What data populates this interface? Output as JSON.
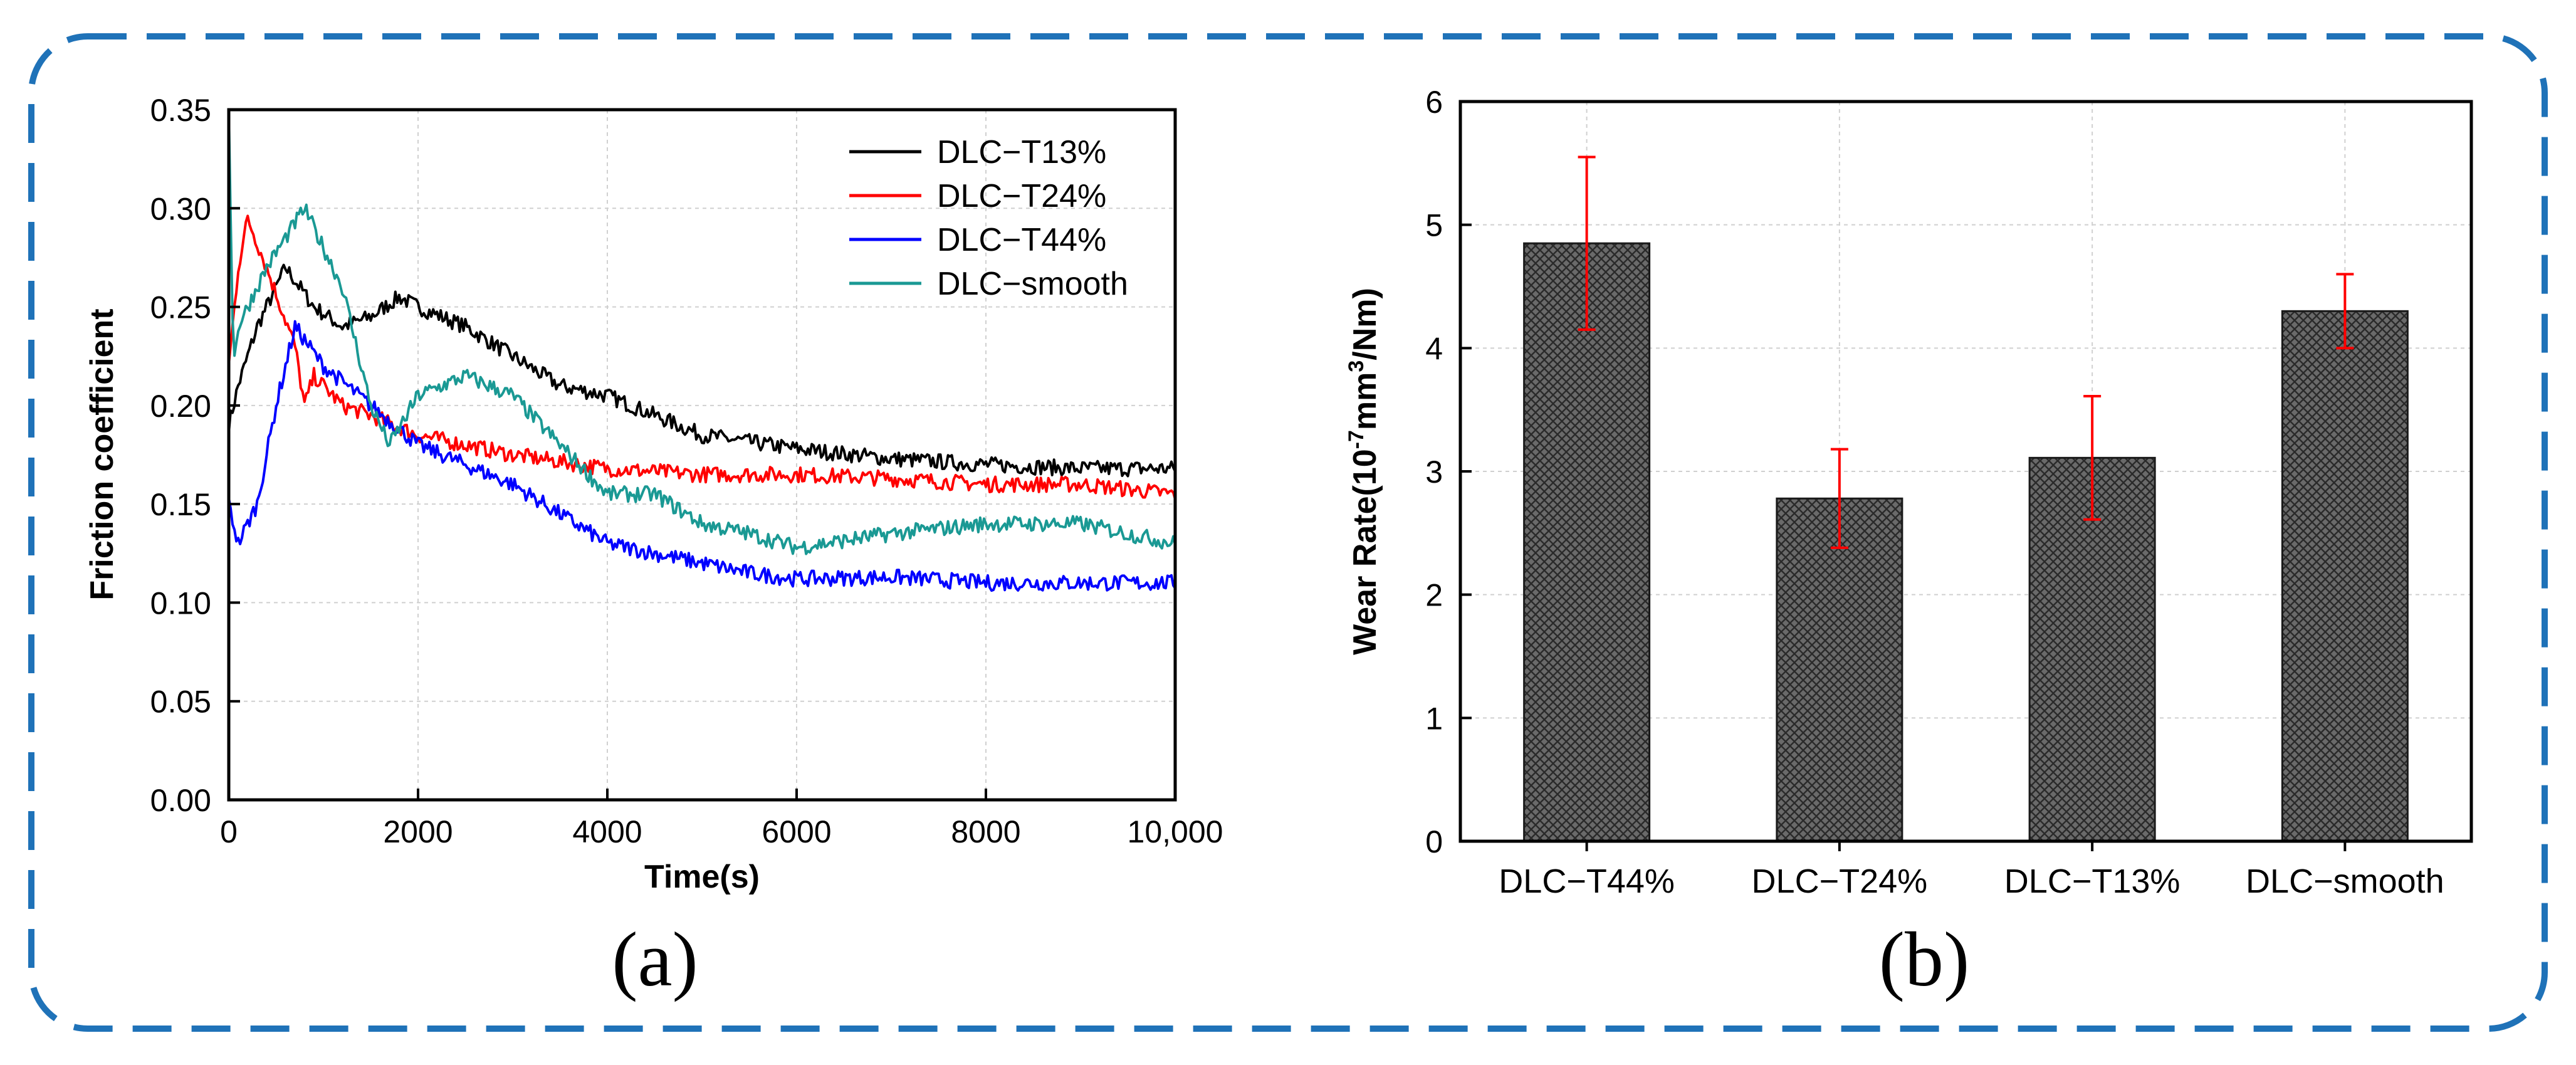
{
  "frame": {
    "border_color": "#1f72b8"
  },
  "panels": [
    {
      "label": "(a)"
    },
    {
      "label": "(b)"
    }
  ],
  "chart_data": [
    {
      "type": "line",
      "xlabel": "Time(s)",
      "ylabel": "Friction coefficient",
      "xlim": [
        0,
        10000
      ],
      "ylim": [
        0,
        0.35
      ],
      "x_ticks": [
        0,
        2000,
        4000,
        6000,
        8000,
        10000
      ],
      "x_tick_labels": [
        "0",
        "2000",
        "4000",
        "6000",
        "8000",
        "10,000"
      ],
      "y_ticks": [
        0,
        0.05,
        0.1,
        0.15,
        0.2,
        0.25,
        0.3,
        0.35
      ],
      "y_tick_labels": [
        "0.00",
        "0.05",
        "0.10",
        "0.15",
        "0.20",
        "0.25",
        "0.30",
        "0.35"
      ],
      "grid": true,
      "legend_position": "top-right",
      "series": [
        {
          "name": "DLC−T13%",
          "color": "#000000",
          "noise": 0.004,
          "x": [
            0,
            100,
            300,
            600,
            900,
            1200,
            1500,
            1800,
            2000,
            2500,
            3000,
            3500,
            4000,
            4500,
            5000,
            6000,
            7000,
            8000,
            9000,
            10000
          ],
          "y": [
            0.19,
            0.21,
            0.24,
            0.27,
            0.25,
            0.24,
            0.245,
            0.255,
            0.25,
            0.24,
            0.225,
            0.21,
            0.205,
            0.195,
            0.185,
            0.178,
            0.173,
            0.17,
            0.168,
            0.168
          ]
        },
        {
          "name": "DLC−T24%",
          "color": "#ff0000",
          "noise": 0.004,
          "x": [
            0,
            100,
            200,
            400,
            700,
            800,
            900,
            1200,
            1500,
            2000,
            3000,
            4000,
            5000,
            6000,
            7000,
            8000,
            9000,
            10000
          ],
          "y": [
            0.22,
            0.27,
            0.295,
            0.27,
            0.23,
            0.2,
            0.215,
            0.2,
            0.195,
            0.185,
            0.175,
            0.168,
            0.165,
            0.165,
            0.163,
            0.16,
            0.16,
            0.155
          ]
        },
        {
          "name": "DLC−T44%",
          "color": "#0000ff",
          "noise": 0.004,
          "x": [
            0,
            100,
            300,
            500,
            700,
            1000,
            1500,
            2000,
            2500,
            3000,
            3500,
            4000,
            4500,
            5000,
            5500,
            6000,
            7000,
            8000,
            9000,
            10000
          ],
          "y": [
            0.15,
            0.13,
            0.15,
            0.2,
            0.24,
            0.22,
            0.2,
            0.18,
            0.17,
            0.16,
            0.145,
            0.13,
            0.125,
            0.12,
            0.115,
            0.112,
            0.113,
            0.11,
            0.11,
            0.11
          ]
        },
        {
          "name": "DLC−smooth",
          "color": "#1a9994",
          "noise": 0.004,
          "x": [
            0,
            50,
            100,
            400,
            800,
            1200,
            1500,
            1700,
            2000,
            2500,
            3000,
            3500,
            4000,
            4500,
            5000,
            5500,
            6000,
            7000,
            8000,
            9000,
            10000
          ],
          "y": [
            0.35,
            0.22,
            0.24,
            0.27,
            0.3,
            0.26,
            0.2,
            0.18,
            0.205,
            0.215,
            0.205,
            0.18,
            0.155,
            0.155,
            0.14,
            0.135,
            0.128,
            0.135,
            0.14,
            0.14,
            0.13
          ]
        }
      ]
    },
    {
      "type": "bar",
      "ylabel_main": "Wear Rate(10",
      "ylabel_exp1": "-7",
      "ylabel_mid": "mm",
      "ylabel_exp2": "3",
      "ylabel_tail": "/Nm)",
      "ylim": [
        0,
        6
      ],
      "y_ticks": [
        0,
        1,
        2,
        3,
        4,
        5,
        6
      ],
      "y_tick_labels": [
        "0",
        "1",
        "2",
        "3",
        "4",
        "5",
        "6"
      ],
      "grid": true,
      "categories": [
        "DLC−T44%",
        "DLC−T24%",
        "DLC−T13%",
        "DLC−smooth"
      ],
      "values": [
        4.85,
        2.78,
        3.11,
        4.3
      ],
      "errors": [
        0.7,
        0.4,
        0.5,
        0.3
      ],
      "bar_color": "#6e6e6e",
      "error_color": "#ff0000"
    }
  ]
}
